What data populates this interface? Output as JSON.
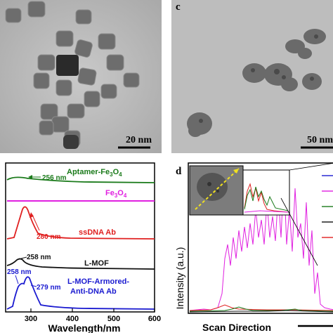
{
  "panel_a": {
    "scale_bar": "20 nm"
  },
  "panel_c": {
    "letter": "c",
    "scale_bar": "50 nm"
  },
  "panel_b": {
    "xlabel": "Wavelength/nm",
    "xticks": [
      "300",
      "400",
      "500",
      "600"
    ],
    "traces": [
      {
        "name": "Aptamer-Fe3O4",
        "label_main": "Aptamer-Fe",
        "label_sub": "3",
        "label_after": "O",
        "label_sub2": "4",
        "color": "#1a7a1a",
        "peak_label": "256 nm"
      },
      {
        "name": "Fe3O4",
        "label_main": "Fe",
        "label_sub": "3",
        "label_after": "O",
        "label_sub2": "4",
        "color": "#e020e0"
      },
      {
        "name": "ssDNA Ab",
        "label_main": "ssDNA Ab",
        "color": "#e02020",
        "peak_label": "280 nm"
      },
      {
        "name": "L-MOF",
        "label_main": "L-MOF",
        "color": "#111111",
        "peak_label": "258 nm"
      },
      {
        "name": "L-MOF-Armored-Anti-DNA Ab",
        "label_line1": "L-MOF-Armored-",
        "label_line2": "Anti-DNA Ab",
        "color": "#1a1ad0",
        "peak_label_1": "258 nm",
        "peak_label_2": "279 nm"
      }
    ]
  },
  "panel_d": {
    "letter": "d",
    "ylabel": "Intensity (a.u.)",
    "xlabel": "Scan Direction",
    "legend_colors": [
      "#1a1ad0",
      "#e020e0",
      "#1a7a1a",
      "#111111",
      "#e02020"
    ]
  }
}
